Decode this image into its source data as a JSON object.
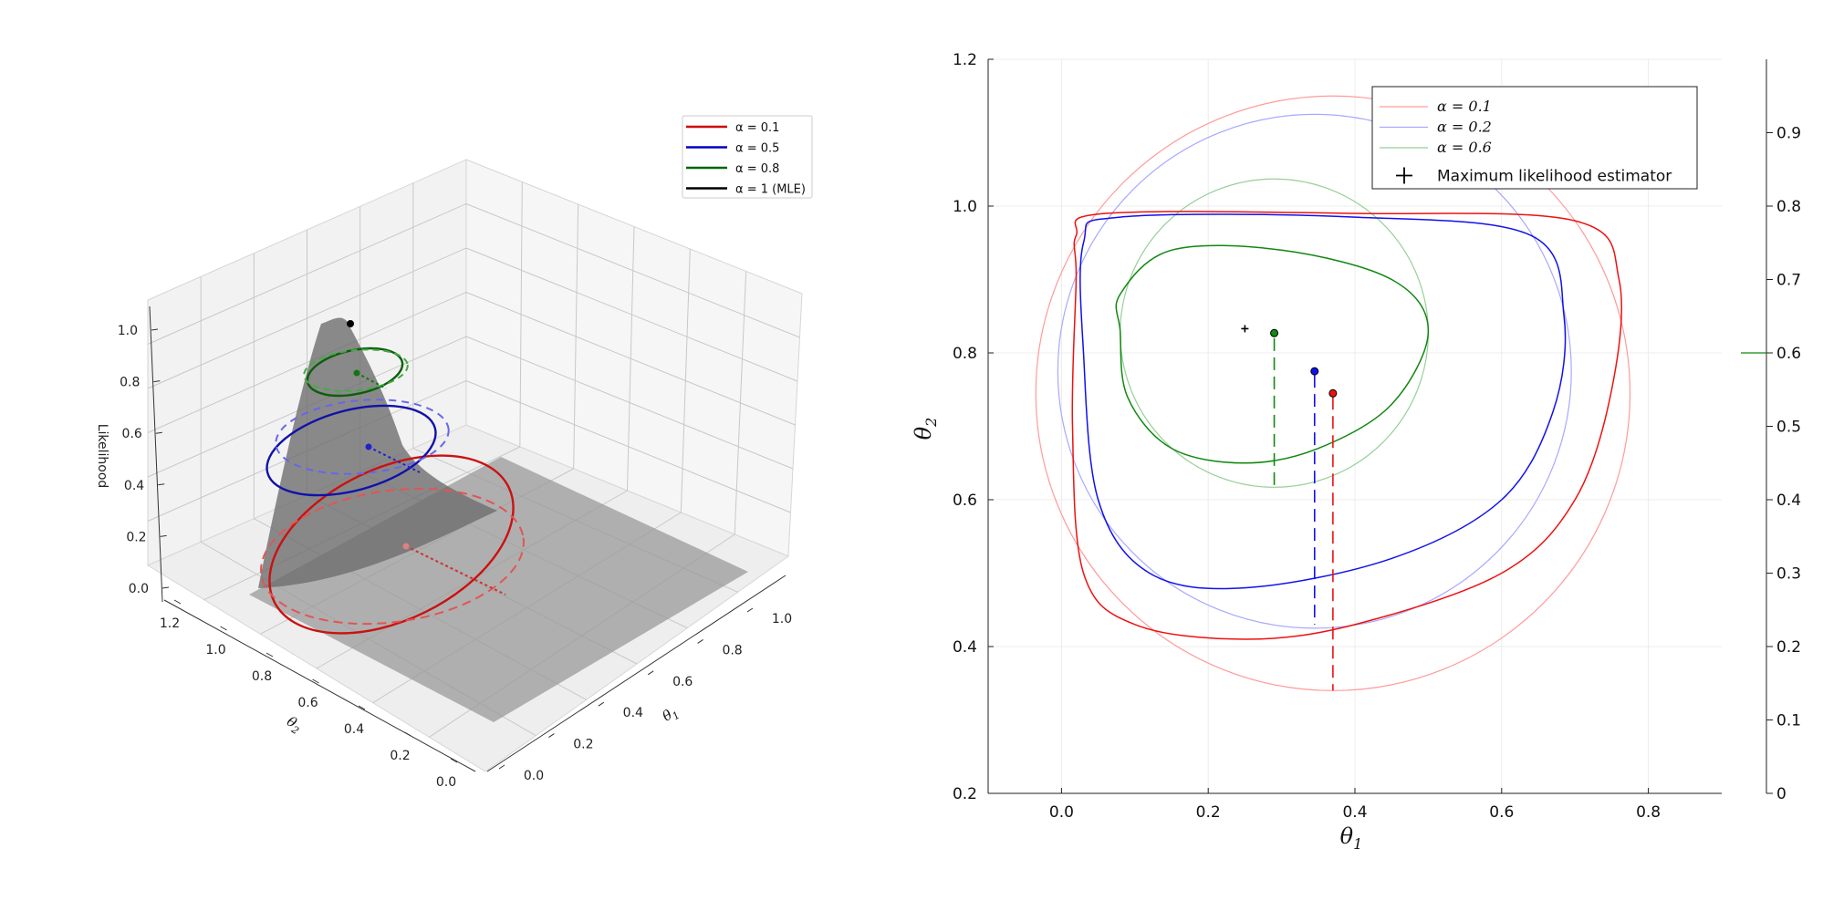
{
  "figure": {
    "panels": 2
  },
  "chart_data": [
    {
      "type": "surface3d",
      "zlabel": "Likelihood",
      "xlabel_math": "θ1",
      "ylabel_math": "θ2",
      "x_ticks": [
        "0.0",
        "0.2",
        "0.4",
        "0.6",
        "0.8",
        "1.0"
      ],
      "y_ticks": [
        "0.0",
        "0.2",
        "0.4",
        "0.6",
        "0.8",
        "1.0",
        "1.2"
      ],
      "z_ticks": [
        "0.0",
        "0.2",
        "0.4",
        "0.6",
        "0.8",
        "1.0"
      ],
      "xlim": [
        0,
        1.0
      ],
      "ylim": [
        0,
        1.2
      ],
      "zlim": [
        0,
        1.0
      ],
      "legend_position": "top-right",
      "legend": [
        {
          "label": "α = 0.1",
          "color": "#d00000"
        },
        {
          "label": "α = 0.5",
          "color": "#0000cc"
        },
        {
          "label": "α = 0.8",
          "color": "#006400"
        },
        {
          "label": "α = 1 (MLE)",
          "color": "#000000"
        }
      ],
      "mle_point": {
        "x": 0.25,
        "y": 0.83,
        "z": 1.0
      },
      "series": [
        {
          "alpha": 0.1,
          "color": "#d00000",
          "center": {
            "x": 0.37,
            "y": 0.75
          }
        },
        {
          "alpha": 0.5,
          "color": "#0000cc",
          "center": {
            "x": 0.35,
            "y": 0.78
          }
        },
        {
          "alpha": 0.8,
          "color": "#006400",
          "center": {
            "x": 0.29,
            "y": 0.83
          }
        }
      ]
    },
    {
      "type": "contour",
      "xlabel_math": "θ1",
      "ylabel_math": "θ2",
      "xlim": [
        -0.1,
        0.9
      ],
      "ylim": [
        0.2,
        1.2
      ],
      "x_ticks": [
        "0.0",
        "0.2",
        "0.4",
        "0.6",
        "0.8"
      ],
      "x_tick_values": [
        0,
        0.2,
        0.4,
        0.6,
        0.8
      ],
      "y_ticks": [
        "0.2",
        "0.4",
        "0.6",
        "0.8",
        "1.0",
        "1.2"
      ],
      "y_tick_values": [
        0.2,
        0.4,
        0.6,
        0.8,
        1.0,
        1.2
      ],
      "right_axis_ticks": [
        "0",
        "0.1",
        "0.2",
        "0.3",
        "0.4",
        "0.5",
        "0.6",
        "0.7",
        "0.8",
        "0.9"
      ],
      "right_axis_values": [
        0,
        0.1,
        0.2,
        0.3,
        0.4,
        0.5,
        0.6,
        0.7,
        0.8,
        0.9
      ],
      "right_axis_marker": 0.6,
      "legend_position": "top-right",
      "legend": [
        {
          "label": "α = 0.1",
          "color": "#ff9a9a"
        },
        {
          "label": "α = 0.2",
          "color": "#a8a8ff"
        },
        {
          "label": "α = 0.6",
          "color": "#98cf98"
        },
        {
          "label": "Maximum likelihood estimator",
          "color": "#000000"
        }
      ],
      "mle": {
        "x": 0.25,
        "y": 0.833
      },
      "circles": [
        {
          "color": "#ff9a9a",
          "cx": 0.37,
          "cy": 0.745,
          "r": 0.405
        },
        {
          "color": "#a8a8ff",
          "cx": 0.345,
          "cy": 0.775,
          "r": 0.35
        },
        {
          "color": "#98cf98",
          "cx": 0.29,
          "cy": 0.827,
          "r": 0.21
        }
      ],
      "regions": [
        {
          "color": "#ee1111",
          "points": [
            [
              0.02,
              0.96
            ],
            [
              0.06,
              0.99
            ],
            [
              0.4,
              0.99
            ],
            [
              0.7,
              0.98
            ],
            [
              0.76,
              0.9
            ],
            [
              0.75,
              0.75
            ],
            [
              0.7,
              0.6
            ],
            [
              0.6,
              0.5
            ],
            [
              0.4,
              0.43
            ],
            [
              0.25,
              0.41
            ],
            [
              0.1,
              0.43
            ],
            [
              0.03,
              0.5
            ],
            [
              0.015,
              0.7
            ],
            [
              0.02,
              0.9
            ]
          ]
        },
        {
          "color": "#1111ee",
          "points": [
            [
              0.03,
              0.95
            ],
            [
              0.08,
              0.985
            ],
            [
              0.4,
              0.985
            ],
            [
              0.64,
              0.96
            ],
            [
              0.685,
              0.85
            ],
            [
              0.67,
              0.72
            ],
            [
              0.6,
              0.6
            ],
            [
              0.45,
              0.52
            ],
            [
              0.25,
              0.48
            ],
            [
              0.12,
              0.5
            ],
            [
              0.05,
              0.6
            ],
            [
              0.03,
              0.8
            ]
          ]
        },
        {
          "color": "#118811",
          "points": [
            [
              0.08,
              0.88
            ],
            [
              0.15,
              0.94
            ],
            [
              0.3,
              0.94
            ],
            [
              0.45,
              0.9
            ],
            [
              0.5,
              0.83
            ],
            [
              0.45,
              0.73
            ],
            [
              0.35,
              0.67
            ],
            [
              0.25,
              0.65
            ],
            [
              0.15,
              0.67
            ],
            [
              0.09,
              0.74
            ],
            [
              0.08,
              0.83
            ]
          ]
        }
      ],
      "points": [
        {
          "x": 0.29,
          "y": 0.827,
          "color": "#118811"
        },
        {
          "x": 0.345,
          "y": 0.775,
          "color": "#1111ee"
        },
        {
          "x": 0.37,
          "y": 0.745,
          "color": "#ee1111"
        }
      ],
      "droplines": [
        {
          "x": 0.29,
          "y0": 0.82,
          "y1": 0.62,
          "color": "#118811"
        },
        {
          "x": 0.345,
          "y0": 0.77,
          "y1": 0.43,
          "color": "#1111ee"
        },
        {
          "x": 0.37,
          "y0": 0.74,
          "y1": 0.34,
          "color": "#ee1111"
        }
      ]
    }
  ]
}
